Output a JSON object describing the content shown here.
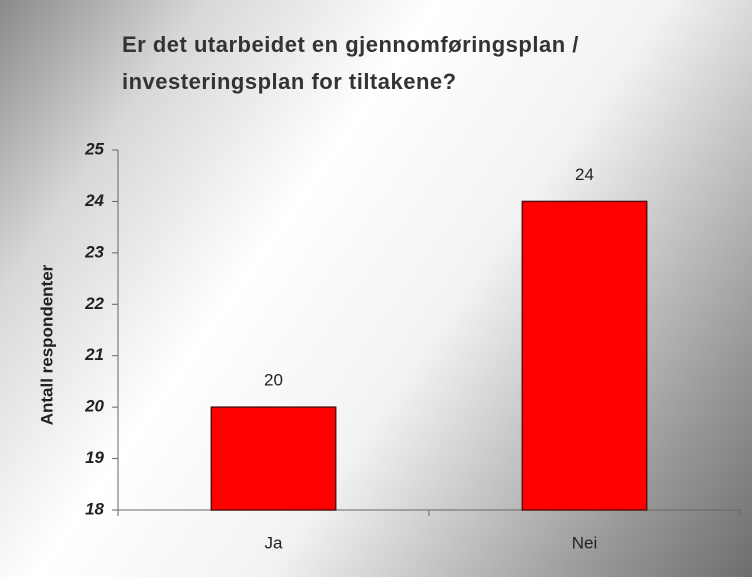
{
  "chart_data": {
    "type": "bar",
    "title": [
      "Er det utarbeidet en gjennomføringsplan /",
      "investeringsplan for tiltakene?"
    ],
    "y_label": "Antall respondenter",
    "categories": [
      "Ja",
      "Nei"
    ],
    "values": [
      20,
      24
    ],
    "color": "#ff0000",
    "ylim": [
      18,
      25
    ],
    "yticks": [
      18,
      19,
      20,
      21,
      22,
      23,
      24,
      25
    ],
    "grid": false
  }
}
